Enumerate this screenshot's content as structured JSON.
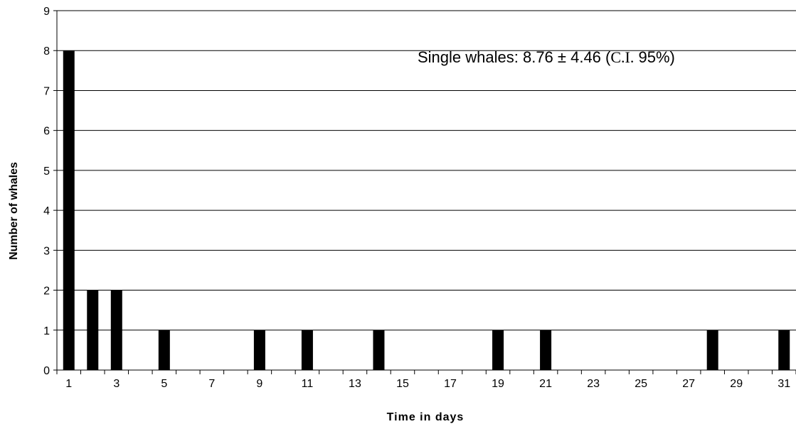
{
  "chart_data": {
    "type": "bar",
    "title": "",
    "xlabel": "Time in days",
    "ylabel": "Number of whales",
    "x": [
      1,
      2,
      3,
      4,
      5,
      6,
      7,
      8,
      9,
      10,
      11,
      12,
      13,
      14,
      15,
      16,
      17,
      18,
      19,
      20,
      21,
      22,
      23,
      24,
      25,
      26,
      27,
      28,
      29,
      30,
      31
    ],
    "values": [
      8,
      2,
      2,
      0,
      1,
      0,
      0,
      0,
      1,
      0,
      1,
      0,
      0,
      1,
      0,
      0,
      0,
      0,
      1,
      0,
      1,
      0,
      0,
      0,
      0,
      0,
      0,
      1,
      0,
      0,
      1
    ],
    "x_tick_labels": [
      "1",
      "3",
      "5",
      "7",
      "9",
      "11",
      "13",
      "15",
      "17",
      "19",
      "21",
      "23",
      "25",
      "27",
      "29",
      "31"
    ],
    "y_tick_labels": [
      "0",
      "1",
      "2",
      "3",
      "4",
      "5",
      "6",
      "7",
      "8",
      "9"
    ],
    "ylim": [
      0,
      9
    ],
    "grid": "horizontal",
    "legend": "none",
    "bar_color": "#000000",
    "annotation": {
      "prefix": "Single whales: 8.76 ± 4.46 (",
      "ci": "C.I.",
      "suffix": " 95%)"
    }
  }
}
